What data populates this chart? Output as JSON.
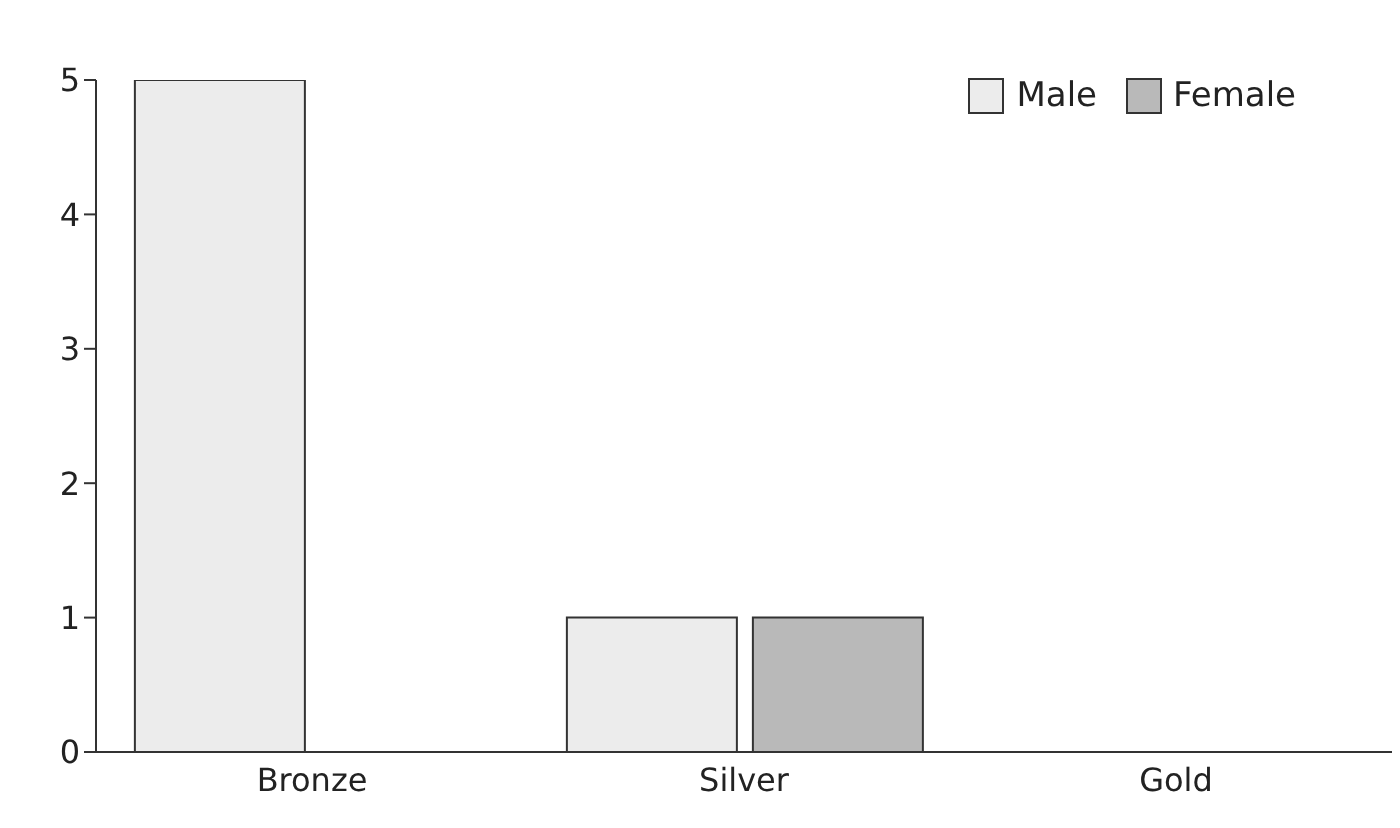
{
  "chart_data": {
    "type": "bar",
    "categories": [
      "Bronze",
      "Silver",
      "Gold"
    ],
    "series": [
      {
        "name": "Male",
        "color": "#ececec",
        "values": [
          5,
          1,
          0
        ]
      },
      {
        "name": "Female",
        "color": "#b9b9b9",
        "values": [
          0,
          1,
          0
        ]
      }
    ],
    "ylim": [
      0,
      5
    ],
    "yticks": [
      0,
      1,
      2,
      3,
      4,
      5
    ],
    "grid": false,
    "legend": "top right"
  }
}
